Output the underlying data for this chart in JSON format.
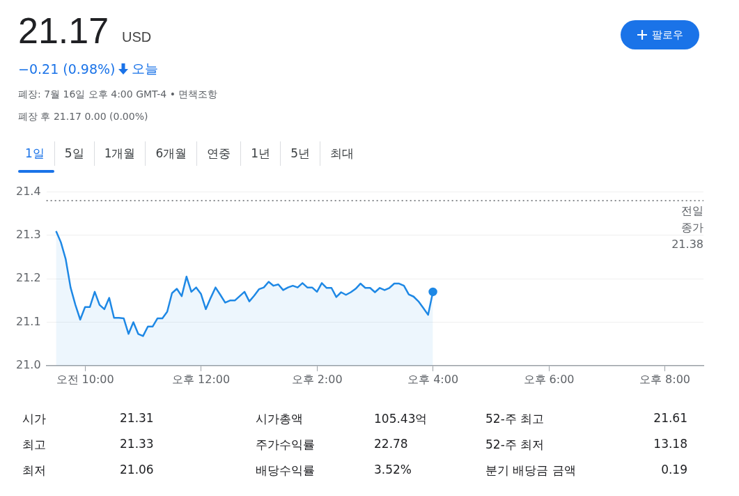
{
  "chart_data": {
    "type": "area",
    "title": "21.17",
    "subtitle": "USD",
    "annotations": [
      "−0.21 (0.98%)",
      "오늘",
      "폐장: 7월 16일 오후 4:00 GMT-4 • 면책조항",
      "폐장 후 21.17 0.00 (0.00%)",
      "팔로우",
      "1일",
      "5일",
      "1개월",
      "6개월",
      "연중",
      "1년",
      "5년",
      "최대",
      "시가",
      "21.31",
      "시가총액",
      "105.43억",
      "52-주 최고",
      "21.61",
      "최고",
      "21.33",
      "주가수익률",
      "22.78",
      "52-주 최저",
      "13.18",
      "최저",
      "21.06",
      "배당수익률",
      "3.52%",
      "분기 배당금 금액",
      "0.19"
    ],
    "categories": [
      null,
      null,
      null,
      null,
      null,
      null,
      null,
      null,
      "오전 10:00",
      null,
      null,
      null,
      null,
      null,
      null,
      null,
      null,
      null,
      null,
      null,
      null,
      null,
      null,
      null,
      null,
      null,
      null,
      null,
      null,
      null,
      null,
      null,
      "오후 12:00",
      null,
      null,
      null,
      null,
      null,
      null,
      null,
      null,
      null,
      null,
      null,
      null,
      null,
      null,
      null,
      null,
      null,
      null,
      null,
      null,
      null,
      null,
      null,
      "오후 2:00",
      null,
      null,
      null,
      null,
      null,
      null,
      null,
      null,
      null,
      null,
      null,
      null,
      null,
      null,
      null,
      null,
      null,
      null,
      null,
      null,
      null,
      null,
      null,
      "오후 4:00",
      null,
      null,
      null,
      null,
      null,
      null,
      null,
      null,
      null,
      null,
      null,
      null,
      null,
      null,
      null,
      null,
      null,
      null,
      null,
      null,
      null,
      null,
      null,
      "오후 6:00",
      null,
      null,
      null,
      null,
      null,
      null,
      null,
      null,
      null,
      null,
      null,
      null,
      null,
      null,
      null,
      null,
      null,
      null,
      null,
      null,
      null,
      null,
      null,
      "오후 8:00",
      null,
      null,
      null,
      null,
      null,
      null,
      null,
      null
    ],
    "series": [
      {
        "color": "#1e88e5",
        "values": [
          null,
          null,
          21.31,
          21.284,
          21.245,
          21.18,
          21.14,
          21.106,
          21.135,
          21.135,
          21.17,
          21.14,
          21.13,
          21.156,
          21.11,
          21.11,
          21.109,
          21.073,
          21.1,
          21.073,
          21.068,
          21.09,
          21.09,
          21.109,
          21.109,
          21.124,
          21.167,
          21.177,
          21.16,
          21.205,
          21.17,
          21.18,
          21.165,
          21.13,
          21.156,
          21.18,
          21.163,
          21.145,
          21.15,
          21.15,
          21.16,
          21.17,
          21.148,
          21.161,
          21.176,
          21.18,
          21.193,
          21.184,
          21.187,
          21.174,
          21.18,
          21.184,
          21.18,
          21.19,
          21.18,
          21.18,
          21.17,
          21.19,
          21.179,
          21.179,
          21.158,
          21.169,
          21.163,
          21.169,
          21.177,
          21.189,
          21.179,
          21.179,
          21.169,
          21.179,
          21.174,
          21.179,
          21.189,
          21.189,
          21.184,
          21.164,
          21.159,
          21.148,
          21.133,
          21.117,
          21.17,
          null,
          null,
          null,
          null,
          null,
          null,
          null,
          null,
          null,
          null,
          null,
          null,
          null,
          null,
          null,
          null,
          null,
          null,
          null,
          null,
          null,
          null,
          null,
          null,
          null,
          null,
          null,
          null,
          null,
          null,
          null,
          null,
          null,
          null,
          null,
          null,
          null,
          null,
          null,
          null,
          null,
          null,
          null,
          null,
          null,
          null,
          null,
          null,
          null,
          null,
          null,
          null,
          null,
          null,
          null,
          null
        ]
      }
    ],
    "ylim": [
      21.0,
      21.4
    ],
    "yticks": [
      {
        "value": 21.0,
        "label": "21.0"
      },
      {
        "value": 21.1,
        "label": "21.1"
      },
      {
        "value": 21.2,
        "label": "21.2"
      },
      {
        "value": 21.3,
        "label": "21.3"
      },
      {
        "value": 21.4,
        "label": "21.4"
      }
    ],
    "ref_lines": [
      {
        "axis": "y",
        "value": 21.38,
        "label": "전일 종가 21.38",
        "color": "#5f6368",
        "line_style": "dotted"
      }
    ],
    "grid": "y",
    "legend": false,
    "marker": "none",
    "line_style": "solid"
  }
}
